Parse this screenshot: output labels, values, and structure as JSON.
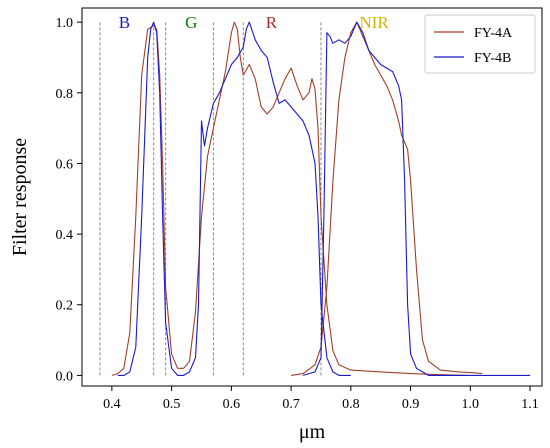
{
  "chart_data": {
    "type": "line",
    "xlabel": "μm",
    "ylabel": "Filter response",
    "xlim": [
      0.35,
      1.12
    ],
    "ylim": [
      -0.03,
      1.04
    ],
    "xticks": [
      "0.4",
      "0.5",
      "0.6",
      "0.7",
      "0.8",
      "0.9",
      "1.0",
      "1.1"
    ],
    "yticks": [
      "0.0",
      "0.2",
      "0.4",
      "0.6",
      "0.8",
      "1.0"
    ],
    "legend_position": "top-right",
    "band_labels": [
      {
        "text": "B",
        "x": 0.421,
        "color": "#1a1ab8"
      },
      {
        "text": "G",
        "x": 0.533,
        "color": "#0d7a0d"
      },
      {
        "text": "R",
        "x": 0.667,
        "color": "#a83232"
      },
      {
        "text": "NIR",
        "x": 0.839,
        "color": "#d4b300"
      }
    ],
    "dashed_lines_x": [
      0.38,
      0.47,
      0.49,
      0.57,
      0.62,
      0.75
    ],
    "series": [
      {
        "name": "FY-4A",
        "color": "#a0402a",
        "points": [
          [
            0.4,
            0.0
          ],
          [
            0.41,
            0.005
          ],
          [
            0.42,
            0.02
          ],
          [
            0.43,
            0.12
          ],
          [
            0.44,
            0.45
          ],
          [
            0.45,
            0.85
          ],
          [
            0.46,
            0.98
          ],
          [
            0.47,
            0.99
          ],
          [
            0.475,
            0.98
          ],
          [
            0.48,
            0.85
          ],
          [
            0.485,
            0.6
          ],
          [
            0.49,
            0.25
          ],
          [
            0.5,
            0.06
          ],
          [
            0.51,
            0.02
          ],
          [
            0.52,
            0.02
          ],
          [
            0.53,
            0.04
          ],
          [
            0.54,
            0.18
          ],
          [
            0.55,
            0.45
          ],
          [
            0.56,
            0.62
          ],
          [
            0.57,
            0.7
          ],
          [
            0.58,
            0.78
          ],
          [
            0.59,
            0.86
          ],
          [
            0.6,
            0.97
          ],
          [
            0.605,
            1.0
          ],
          [
            0.61,
            0.98
          ],
          [
            0.615,
            0.9
          ],
          [
            0.62,
            0.85
          ],
          [
            0.63,
            0.88
          ],
          [
            0.64,
            0.84
          ],
          [
            0.65,
            0.76
          ],
          [
            0.66,
            0.74
          ],
          [
            0.67,
            0.76
          ],
          [
            0.68,
            0.8
          ],
          [
            0.69,
            0.84
          ],
          [
            0.7,
            0.87
          ],
          [
            0.71,
            0.82
          ],
          [
            0.72,
            0.78
          ],
          [
            0.73,
            0.8
          ],
          [
            0.735,
            0.84
          ],
          [
            0.74,
            0.81
          ],
          [
            0.745,
            0.7
          ],
          [
            0.75,
            0.45
          ],
          [
            0.76,
            0.2
          ],
          [
            0.77,
            0.07
          ],
          [
            0.78,
            0.03
          ],
          [
            0.8,
            0.015
          ],
          [
            0.85,
            0.01
          ],
          [
            0.9,
            0.005
          ],
          [
            0.95,
            0.002
          ],
          [
            1.0,
            0.0
          ],
          [
            0.7,
            0.0
          ],
          [
            0.72,
            0.005
          ],
          [
            0.74,
            0.03
          ],
          [
            0.75,
            0.08
          ],
          [
            0.76,
            0.25
          ],
          [
            0.77,
            0.55
          ],
          [
            0.78,
            0.78
          ],
          [
            0.79,
            0.9
          ],
          [
            0.8,
            0.97
          ],
          [
            0.81,
            1.0
          ],
          [
            0.82,
            0.96
          ],
          [
            0.83,
            0.92
          ],
          [
            0.84,
            0.88
          ],
          [
            0.85,
            0.85
          ],
          [
            0.86,
            0.82
          ],
          [
            0.87,
            0.78
          ],
          [
            0.88,
            0.72
          ],
          [
            0.885,
            0.68
          ],
          [
            0.89,
            0.66
          ],
          [
            0.895,
            0.64
          ],
          [
            0.9,
            0.55
          ],
          [
            0.91,
            0.3
          ],
          [
            0.92,
            0.1
          ],
          [
            0.93,
            0.04
          ],
          [
            0.95,
            0.015
          ],
          [
            0.98,
            0.01
          ],
          [
            1.0,
            0.008
          ],
          [
            1.02,
            0.005
          ]
        ]
      },
      {
        "name": "FY-4B",
        "color": "#1a1acc",
        "points": [
          [
            0.41,
            0.0
          ],
          [
            0.42,
            0.0
          ],
          [
            0.43,
            0.01
          ],
          [
            0.44,
            0.08
          ],
          [
            0.45,
            0.45
          ],
          [
            0.46,
            0.9
          ],
          [
            0.465,
            0.98
          ],
          [
            0.47,
            1.0
          ],
          [
            0.475,
            0.97
          ],
          [
            0.48,
            0.8
          ],
          [
            0.485,
            0.45
          ],
          [
            0.49,
            0.15
          ],
          [
            0.5,
            0.02
          ],
          [
            0.51,
            0.0
          ],
          [
            0.52,
            0.0
          ],
          [
            0.53,
            0.01
          ],
          [
            0.54,
            0.05
          ],
          [
            0.545,
            0.2
          ],
          [
            0.55,
            0.72
          ],
          [
            0.555,
            0.65
          ],
          [
            0.56,
            0.7
          ],
          [
            0.57,
            0.77
          ],
          [
            0.58,
            0.8
          ],
          [
            0.59,
            0.84
          ],
          [
            0.6,
            0.88
          ],
          [
            0.61,
            0.9
          ],
          [
            0.62,
            0.93
          ],
          [
            0.625,
            0.98
          ],
          [
            0.63,
            1.0
          ],
          [
            0.64,
            0.95
          ],
          [
            0.65,
            0.92
          ],
          [
            0.66,
            0.9
          ],
          [
            0.67,
            0.83
          ],
          [
            0.68,
            0.77
          ],
          [
            0.69,
            0.78
          ],
          [
            0.7,
            0.76
          ],
          [
            0.71,
            0.74
          ],
          [
            0.72,
            0.72
          ],
          [
            0.73,
            0.68
          ],
          [
            0.74,
            0.6
          ],
          [
            0.745,
            0.45
          ],
          [
            0.75,
            0.2
          ],
          [
            0.76,
            0.05
          ],
          [
            0.77,
            0.01
          ],
          [
            0.78,
            0.0
          ],
          [
            0.8,
            0.0
          ],
          [
            0.72,
            0.0
          ],
          [
            0.74,
            0.01
          ],
          [
            0.75,
            0.05
          ],
          [
            0.755,
            0.45
          ],
          [
            0.76,
            0.97
          ],
          [
            0.765,
            0.96
          ],
          [
            0.77,
            0.94
          ],
          [
            0.78,
            0.95
          ],
          [
            0.79,
            0.94
          ],
          [
            0.8,
            0.96
          ],
          [
            0.81,
            1.0
          ],
          [
            0.82,
            0.97
          ],
          [
            0.83,
            0.92
          ],
          [
            0.84,
            0.9
          ],
          [
            0.85,
            0.88
          ],
          [
            0.86,
            0.87
          ],
          [
            0.87,
            0.86
          ],
          [
            0.88,
            0.82
          ],
          [
            0.885,
            0.78
          ],
          [
            0.89,
            0.55
          ],
          [
            0.895,
            0.2
          ],
          [
            0.9,
            0.06
          ],
          [
            0.91,
            0.02
          ],
          [
            0.93,
            0.0
          ],
          [
            1.0,
            0.0
          ],
          [
            1.1,
            0.0
          ]
        ]
      }
    ]
  }
}
